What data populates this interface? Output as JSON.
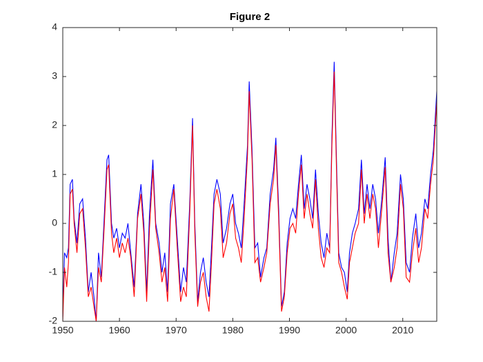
{
  "chart_data": {
    "type": "line",
    "title": "Figure 2",
    "x": [
      1950.0,
      1950.3,
      1950.7,
      1951.0,
      1951.3,
      1951.7,
      1952.0,
      1952.5,
      1953.0,
      1953.5,
      1954.0,
      1954.5,
      1955.0,
      1955.5,
      1955.9,
      1956.3,
      1956.8,
      1957.3,
      1957.8,
      1958.1,
      1958.6,
      1959.0,
      1959.5,
      1960.0,
      1960.5,
      1961.0,
      1961.5,
      1962.0,
      1962.6,
      1963.2,
      1963.8,
      1964.3,
      1964.8,
      1965.3,
      1965.9,
      1966.4,
      1967.0,
      1967.5,
      1968.0,
      1968.5,
      1969.0,
      1969.6,
      1970.2,
      1970.8,
      1971.3,
      1971.8,
      1972.4,
      1972.9,
      1973.3,
      1973.8,
      1974.3,
      1974.8,
      1975.3,
      1975.8,
      1976.2,
      1976.7,
      1977.2,
      1977.8,
      1978.3,
      1978.9,
      1979.5,
      1980.0,
      1980.5,
      1981.0,
      1981.5,
      1982.0,
      1982.6,
      1982.9,
      1983.4,
      1983.9,
      1984.4,
      1984.9,
      1985.5,
      1986.0,
      1986.6,
      1987.2,
      1987.6,
      1988.1,
      1988.6,
      1989.1,
      1989.6,
      1990.1,
      1990.6,
      1991.1,
      1991.6,
      1992.1,
      1992.6,
      1993.1,
      1993.6,
      1994.1,
      1994.6,
      1995.1,
      1995.6,
      1996.1,
      1996.6,
      1997.1,
      1997.5,
      1997.9,
      1998.3,
      1998.7,
      1999.2,
      1999.7,
      2000.2,
      2000.6,
      2001.1,
      2001.6,
      2002.2,
      2002.7,
      2003.2,
      2003.7,
      2004.2,
      2004.7,
      2005.2,
      2005.7,
      2006.3,
      2006.9,
      2007.4,
      2007.9,
      2008.5,
      2009.0,
      2009.6,
      2010.1,
      2010.6,
      2011.2,
      2011.7,
      2012.3,
      2012.8,
      2013.3,
      2013.9,
      2014.4,
      2014.9,
      2015.4,
      2016.0
    ],
    "series": [
      {
        "color": "#0000ff",
        "values": [
          -1.9,
          -0.6,
          -0.7,
          -0.5,
          0.8,
          0.9,
          0.1,
          -0.4,
          0.4,
          0.5,
          -0.3,
          -1.4,
          -1.0,
          -1.5,
          -2.0,
          -0.6,
          -1.1,
          0.1,
          1.3,
          1.4,
          0.0,
          -0.3,
          -0.1,
          -0.5,
          -0.2,
          -0.3,
          0.0,
          -0.6,
          -1.3,
          0.2,
          0.8,
          0.0,
          -1.4,
          0.2,
          1.3,
          0.0,
          -0.4,
          -1.0,
          -0.6,
          -1.4,
          0.4,
          0.8,
          -0.3,
          -1.4,
          -0.9,
          -1.2,
          0.4,
          2.15,
          0.0,
          -1.6,
          -1.0,
          -0.7,
          -1.2,
          -1.5,
          -0.6,
          0.6,
          0.9,
          0.6,
          -0.4,
          -0.1,
          0.4,
          0.6,
          0.0,
          -0.2,
          -0.5,
          0.4,
          1.6,
          2.9,
          1.5,
          -0.5,
          -0.4,
          -1.1,
          -0.7,
          -0.5,
          0.6,
          1.1,
          1.75,
          0.3,
          -1.7,
          -1.4,
          -0.4,
          0.1,
          0.3,
          0.1,
          0.8,
          1.4,
          0.3,
          0.8,
          0.5,
          0.1,
          1.1,
          0.2,
          -0.4,
          -0.7,
          -0.2,
          -0.5,
          1.8,
          3.3,
          1.3,
          -0.6,
          -0.9,
          -1.0,
          -1.4,
          -0.6,
          -0.2,
          0.0,
          0.3,
          1.3,
          0.2,
          0.8,
          0.3,
          0.8,
          0.5,
          -0.2,
          0.5,
          1.35,
          -0.3,
          -1.2,
          -0.6,
          -0.2,
          1.0,
          0.5,
          -0.8,
          -1.0,
          -0.3,
          0.2,
          -0.5,
          -0.2,
          0.5,
          0.3,
          1.0,
          1.5,
          2.7
        ]
      },
      {
        "color": "#ff0000",
        "values": [
          -2.0,
          -0.9,
          -1.3,
          -0.8,
          0.6,
          0.7,
          0.0,
          -0.6,
          0.2,
          0.3,
          -0.5,
          -1.5,
          -1.3,
          -1.7,
          -2.0,
          -0.9,
          -1.2,
          -0.1,
          1.1,
          1.2,
          -0.2,
          -0.6,
          -0.3,
          -0.7,
          -0.4,
          -0.6,
          -0.3,
          -0.7,
          -1.5,
          0.1,
          0.6,
          -0.2,
          -1.6,
          -0.1,
          1.1,
          -0.1,
          -0.6,
          -1.2,
          -0.9,
          -1.6,
          0.1,
          0.7,
          -0.5,
          -1.6,
          -1.3,
          -1.5,
          0.2,
          2.0,
          -0.2,
          -1.7,
          -1.2,
          -1.0,
          -1.5,
          -1.8,
          -0.9,
          0.4,
          0.7,
          0.3,
          -0.7,
          -0.4,
          0.2,
          0.4,
          -0.3,
          -0.5,
          -0.8,
          0.1,
          1.4,
          2.7,
          1.3,
          -0.8,
          -0.7,
          -1.2,
          -0.9,
          -0.6,
          0.4,
          0.9,
          1.6,
          0.1,
          -1.8,
          -1.5,
          -0.6,
          -0.1,
          0.0,
          -0.2,
          0.6,
          1.2,
          0.1,
          0.6,
          0.2,
          -0.1,
          0.9,
          -0.1,
          -0.7,
          -0.9,
          -0.5,
          -0.6,
          1.6,
          3.1,
          1.1,
          -0.8,
          -1.0,
          -1.3,
          -1.55,
          -0.8,
          -0.5,
          -0.2,
          0.0,
          1.1,
          0.0,
          0.6,
          0.1,
          0.6,
          0.3,
          -0.5,
          0.3,
          1.15,
          -0.6,
          -1.2,
          -0.9,
          -0.5,
          0.8,
          0.3,
          -1.1,
          -1.2,
          -0.6,
          -0.1,
          -0.8,
          -0.5,
          0.3,
          0.1,
          0.8,
          1.3,
          2.5
        ]
      }
    ],
    "xlim": [
      1950,
      2016
    ],
    "ylim": [
      -2,
      4
    ],
    "xticks": [
      1950,
      1960,
      1970,
      1980,
      1990,
      2000,
      2010
    ],
    "yticks": [
      -2,
      -1,
      0,
      1,
      2,
      3,
      4
    ]
  }
}
